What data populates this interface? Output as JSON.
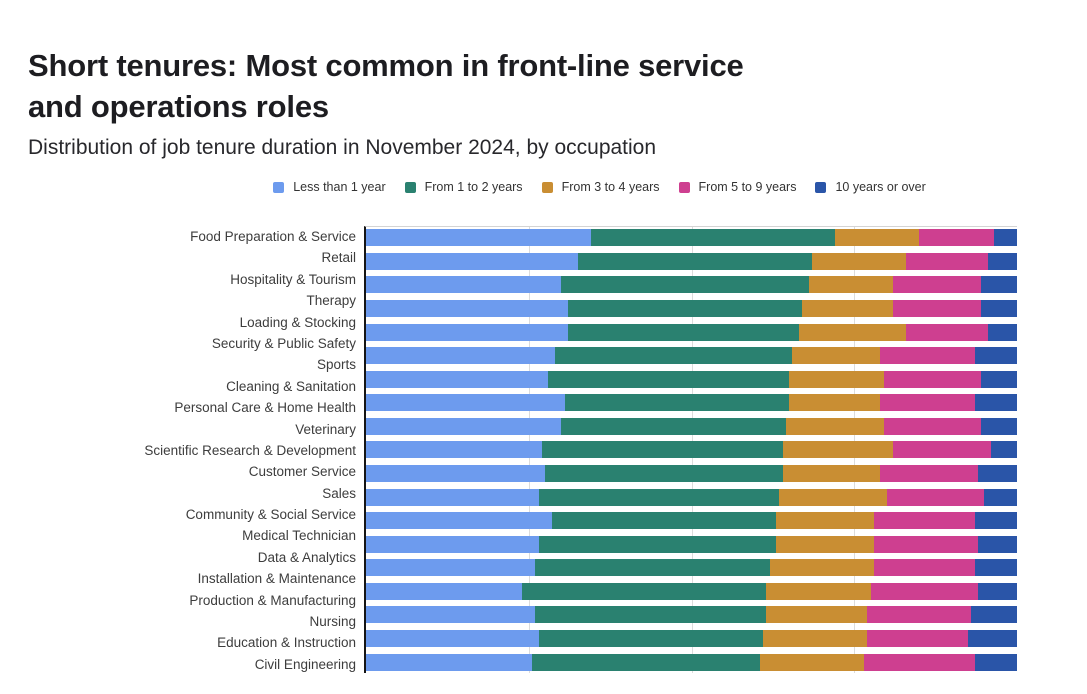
{
  "header": {
    "title": {
      "line1": "Short tenures: Most common in front-line service",
      "line2": "and operations roles"
    },
    "subtitle": "Distribution of job tenure duration in November 2024, by occupation"
  },
  "legend": [
    {
      "label": "Less than 1 year",
      "color": "#6D9BEE"
    },
    {
      "label": "From 1 to 2 years",
      "color": "#2A8170"
    },
    {
      "label": "From 3 to 4 years",
      "color": "#C98E33"
    },
    {
      "label": "From 5 to 9 years",
      "color": "#CE3F90"
    },
    {
      "label": "10 years or over",
      "color": "#2A55A8"
    }
  ],
  "chart_data": {
    "type": "bar",
    "orientation": "horizontal",
    "stacked": true,
    "units": "percent of workers",
    "title": "Short tenures: Most common in front-line service and operations roles",
    "subtitle": "Distribution of job tenure duration in November 2024, by occupation",
    "xlabel": "",
    "ylabel": "",
    "xlim": [
      0,
      100
    ],
    "grid": true,
    "gridlines_pct": [
      25,
      50,
      75
    ],
    "legend_position": "top",
    "categories": [
      "Food Preparation & Service",
      "Retail",
      "Hospitality & Tourism",
      "Therapy",
      "Loading & Stocking",
      "Security & Public Safety",
      "Sports",
      "Cleaning & Sanitation",
      "Personal Care & Home Health",
      "Veterinary",
      "Scientific Research & Development",
      "Customer Service",
      "Sales",
      "Community & Social Service",
      "Medical Technician",
      "Data & Analytics",
      "Installation & Maintenance",
      "Production & Manufacturing",
      "Nursing",
      "Education & Instruction",
      "Civil Engineering"
    ],
    "series": [
      {
        "name": "Less than 1 year",
        "color": "#6D9BEE",
        "values": [
          34.5,
          32.5,
          30,
          31,
          31,
          29,
          28,
          30.5,
          30,
          27,
          27.5,
          26.5,
          28.5,
          26.5,
          26,
          24,
          26,
          26.5,
          25.5,
          25.5,
          23.5
        ]
      },
      {
        "name": "From 1 to 2 years",
        "color": "#2A8170",
        "values": [
          37.5,
          36,
          38,
          36,
          35.5,
          36.5,
          37,
          34.5,
          34.5,
          37,
          36.5,
          37,
          34.5,
          36.5,
          36,
          37.5,
          35.5,
          34.5,
          35,
          35,
          36
        ]
      },
      {
        "name": "From 3 to 4 years",
        "color": "#C98E33",
        "values": [
          13,
          14.5,
          13,
          14,
          16.5,
          13.5,
          14.5,
          14,
          15,
          17,
          15,
          16.5,
          15,
          15,
          16,
          16,
          15.5,
          16,
          16,
          14,
          15.5
        ]
      },
      {
        "name": "From 5 to 9 years",
        "color": "#CE3F90",
        "values": [
          11.5,
          12.5,
          13.5,
          13.5,
          12.5,
          14.5,
          15,
          14.5,
          15,
          15,
          15,
          15,
          15.5,
          16,
          15.5,
          16.5,
          16,
          15.5,
          17,
          17,
          17
        ]
      },
      {
        "name": "10 years or over",
        "color": "#2A55A8",
        "values": [
          3.5,
          4.5,
          5.5,
          5.5,
          4.5,
          6.5,
          5.5,
          6.5,
          5.5,
          4,
          6,
          5,
          6.5,
          6,
          6.5,
          6,
          7,
          7.5,
          6.5,
          8.5,
          8
        ]
      }
    ]
  }
}
